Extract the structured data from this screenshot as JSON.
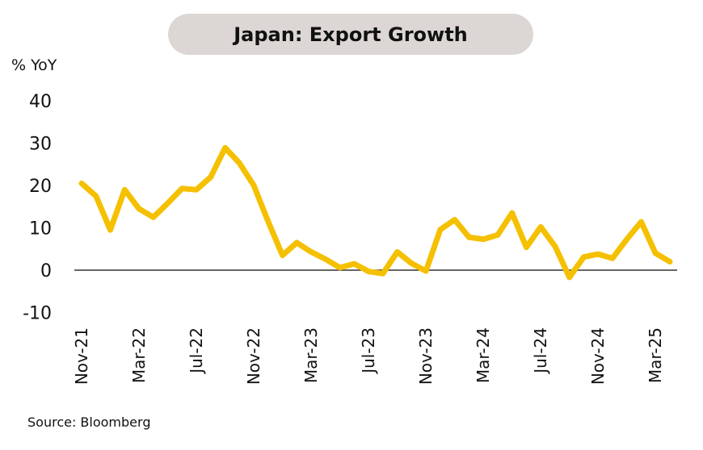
{
  "title": "Japan: Export Growth",
  "source": "Source: Bloomberg",
  "colors": {
    "line": "#f5c000",
    "zero_line": "#333333",
    "title_bg": "#dcd7d4"
  },
  "chart_data": {
    "type": "line",
    "title": "Japan: Export Growth",
    "ylabel": "% YoY",
    "xlabel": "",
    "ylim": [
      -10,
      40
    ],
    "yticks": [
      -10,
      0,
      10,
      20,
      30,
      40
    ],
    "grid": false,
    "x_tick_labels": [
      "Nov-21",
      "Mar-22",
      "Jul-22",
      "Nov-22",
      "Mar-23",
      "Jul-23",
      "Nov-23",
      "Mar-24",
      "Jul-24",
      "Nov-24",
      "Mar-25"
    ],
    "x": [
      "Nov-21",
      "Dec-21",
      "Jan-22",
      "Feb-22",
      "Mar-22",
      "Apr-22",
      "May-22",
      "Jun-22",
      "Jul-22",
      "Aug-22",
      "Sep-22",
      "Oct-22",
      "Nov-22",
      "Dec-22",
      "Jan-23",
      "Feb-23",
      "Mar-23",
      "Apr-23",
      "May-23",
      "Jun-23",
      "Jul-23",
      "Aug-23",
      "Sep-23",
      "Oct-23",
      "Nov-23",
      "Dec-23",
      "Jan-24",
      "Feb-24",
      "Mar-24",
      "Apr-24",
      "May-24",
      "Jun-24",
      "Jul-24",
      "Aug-24",
      "Sep-24",
      "Oct-24",
      "Nov-24",
      "Dec-24",
      "Jan-25",
      "Feb-25",
      "Mar-25",
      "Apr-25"
    ],
    "series": [
      {
        "values": [
          20.5,
          17.5,
          9.5,
          19.0,
          14.5,
          12.5,
          15.8,
          19.3,
          19.0,
          22.0,
          28.9,
          25.3,
          20.0,
          11.5,
          3.5,
          6.5,
          4.3,
          2.6,
          0.6,
          1.5,
          -0.3,
          -0.8,
          4.3,
          1.6,
          -0.2,
          9.6,
          11.9,
          7.8,
          7.3,
          8.3,
          13.5,
          5.4,
          10.2,
          5.6,
          -1.7,
          3.1,
          3.8,
          2.8,
          7.3,
          11.4,
          4.0,
          2.0
        ]
      }
    ]
  }
}
